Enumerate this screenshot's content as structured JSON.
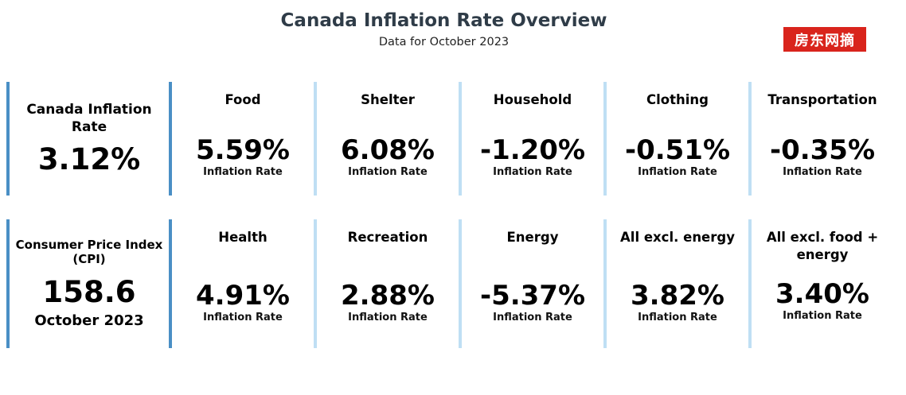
{
  "header": {
    "title": "Canada Inflation Rate Overview",
    "subtitle": "Data for October 2023"
  },
  "watermark": {
    "text": "房东网摘",
    "color": "#d9241c"
  },
  "colors": {
    "primary_border": "#4a8fc5",
    "secondary_border": "#bfdff4",
    "title": "#2f3c48"
  },
  "row1": {
    "main": {
      "label": "Canada Inflation Rate",
      "value": "3.12%"
    },
    "cards": [
      {
        "category": "Food",
        "value": "5.59%",
        "label": "Inflation Rate"
      },
      {
        "category": "Shelter",
        "value": "6.08%",
        "label": "Inflation Rate"
      },
      {
        "category": "Household",
        "value": "-1.20%",
        "label": "Inflation Rate"
      },
      {
        "category": "Clothing",
        "value": "-0.51%",
        "label": "Inflation Rate"
      },
      {
        "category": "Transportation",
        "value": "-0.35%",
        "label": "Inflation Rate"
      }
    ]
  },
  "row2": {
    "main": {
      "label": "Consumer Price Index (CPI)",
      "value": "158.6",
      "date": "October 2023"
    },
    "cards": [
      {
        "category": "Health",
        "value": "4.91%",
        "label": "Inflation Rate"
      },
      {
        "category": "Recreation",
        "value": "2.88%",
        "label": "Inflation Rate"
      },
      {
        "category": "Energy",
        "value": "-5.37%",
        "label": "Inflation Rate"
      },
      {
        "category": "All excl. energy",
        "value": "3.82%",
        "label": "Inflation Rate"
      },
      {
        "category": "All excl. food + energy",
        "value": "3.40%",
        "label": "Inflation Rate"
      }
    ]
  }
}
